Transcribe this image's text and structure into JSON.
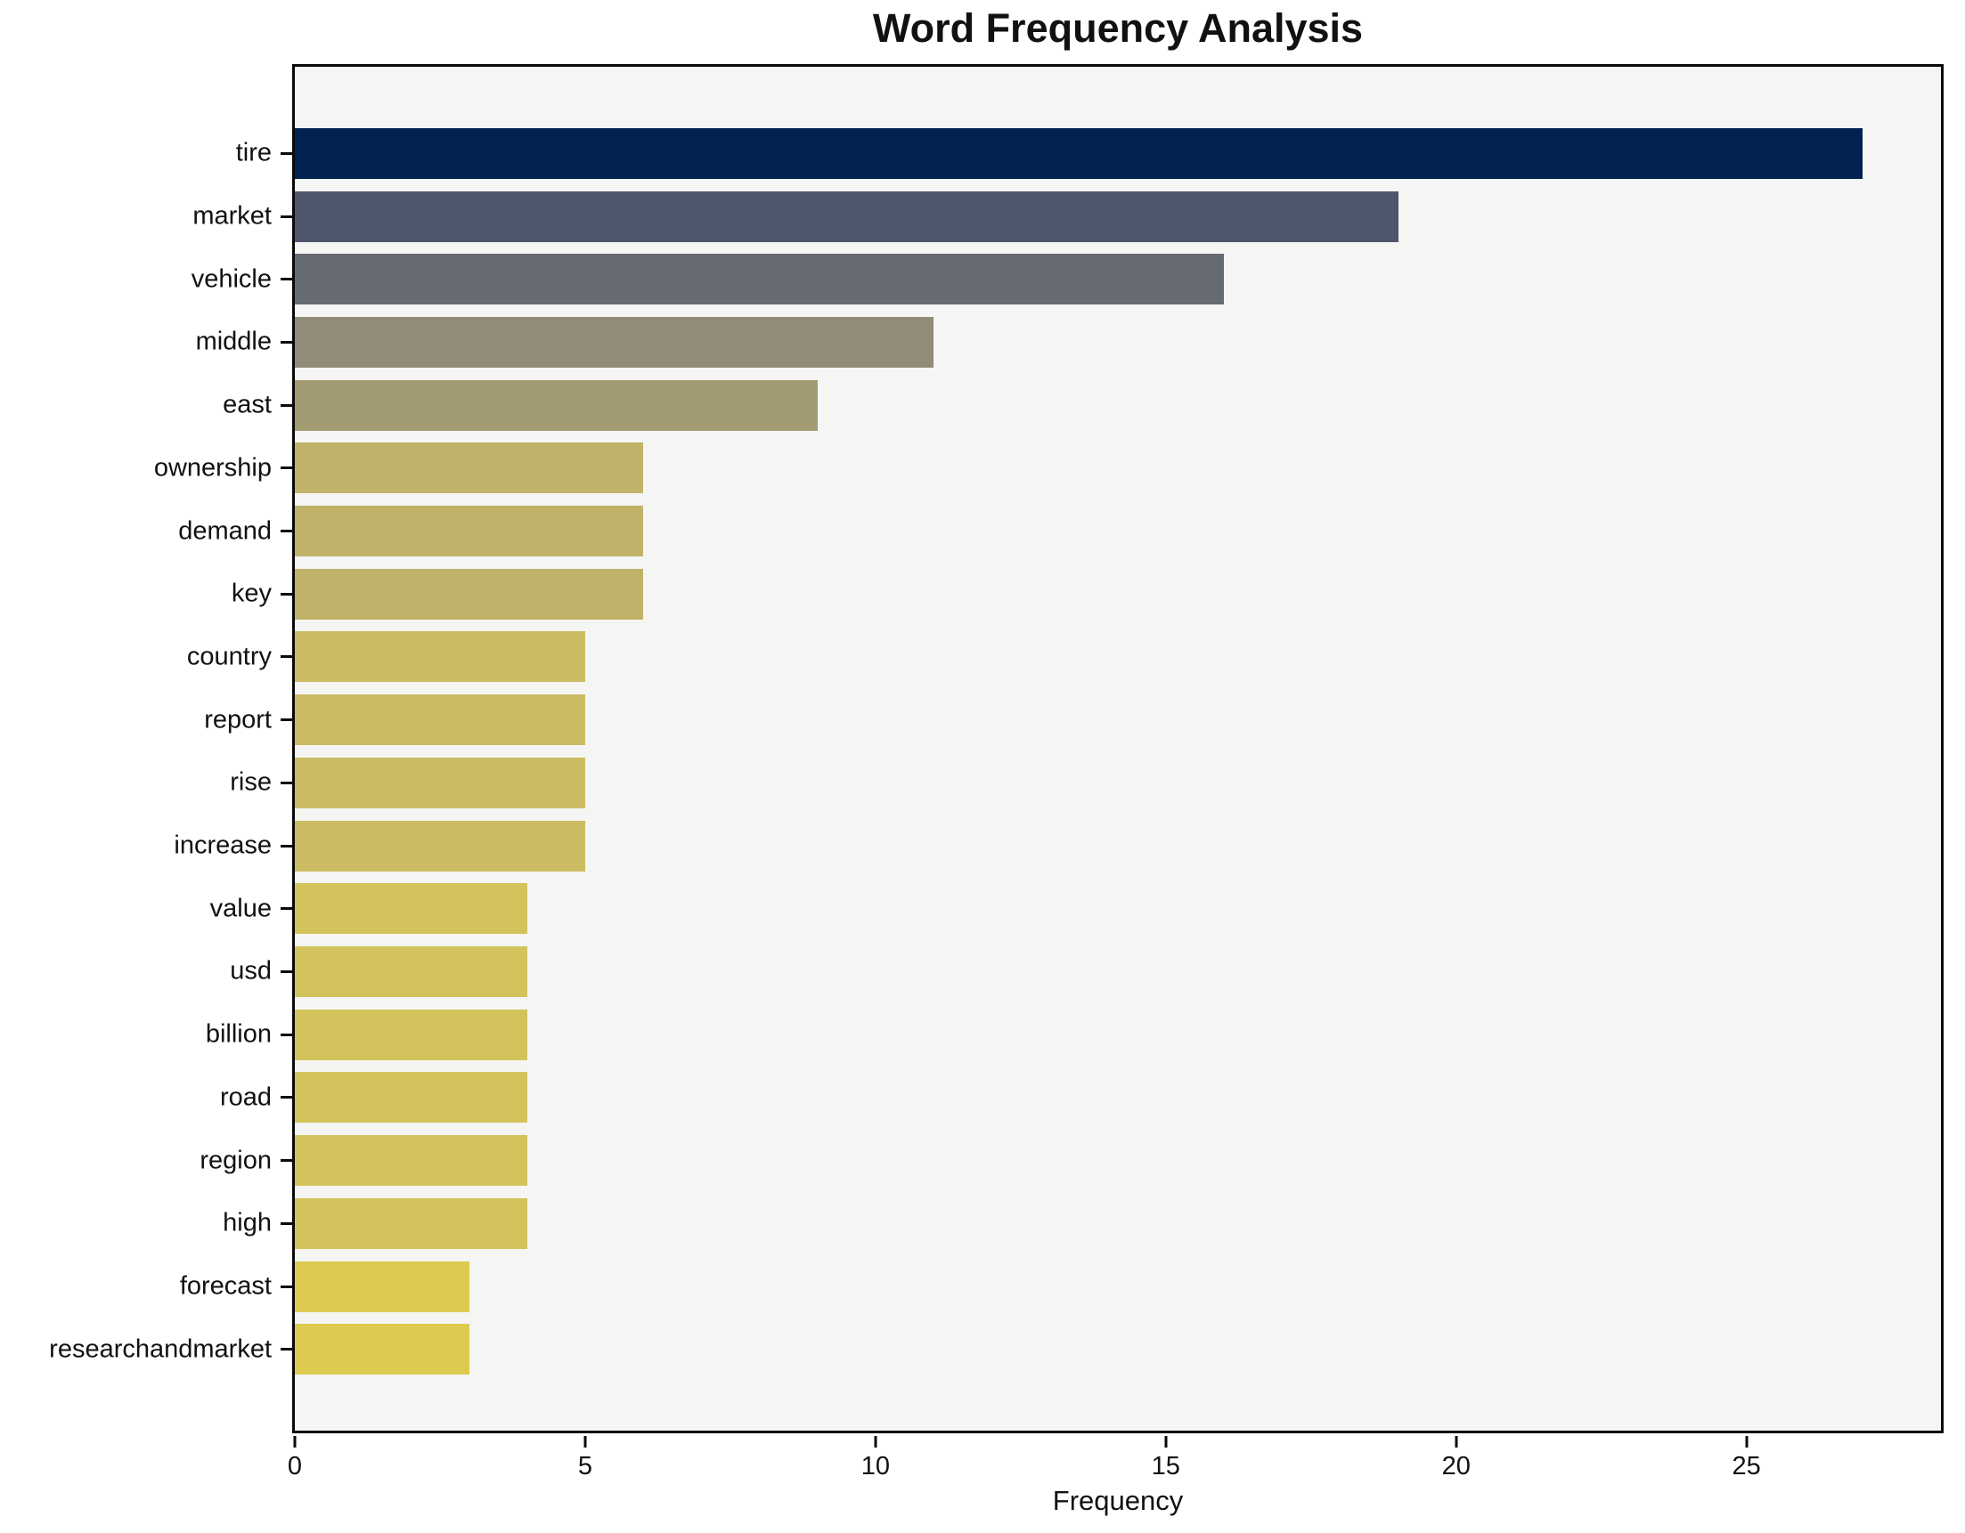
{
  "title": "Word Frequency Analysis",
  "xlabel": "Frequency",
  "chart_data": {
    "type": "bar",
    "orientation": "horizontal",
    "title": "Word Frequency Analysis",
    "xlabel": "Frequency",
    "ylabel": "",
    "xlim": [
      0,
      28.35
    ],
    "x_ticks": [
      0,
      5,
      10,
      15,
      20,
      25
    ],
    "grid": false,
    "legend": null,
    "plot_background": "#f5f5f4",
    "figure_background": "#ffffff",
    "spine_color": "#0a0a0a",
    "categories": [
      "tire",
      "market",
      "vehicle",
      "middle",
      "east",
      "ownership",
      "demand",
      "key",
      "country",
      "report",
      "rise",
      "increase",
      "value",
      "usd",
      "billion",
      "road",
      "region",
      "high",
      "forecast",
      "researchandmarket"
    ],
    "values": [
      27,
      19,
      16,
      11,
      9,
      6,
      6,
      6,
      5,
      5,
      5,
      5,
      4,
      4,
      4,
      4,
      4,
      4,
      3,
      3
    ],
    "bar_colors": [
      "#02224f",
      "#4d566b",
      "#666a73",
      "#918c79",
      "#a29b72",
      "#c0b269",
      "#c0b269",
      "#c0b269",
      "#cbbc63",
      "#cbbc63",
      "#cbbc63",
      "#cbbc63",
      "#d3c35c",
      "#d3c35c",
      "#d3c35c",
      "#d3c35c",
      "#d3c35c",
      "#d3c35c",
      "#ddca51",
      "#ddca51"
    ]
  }
}
